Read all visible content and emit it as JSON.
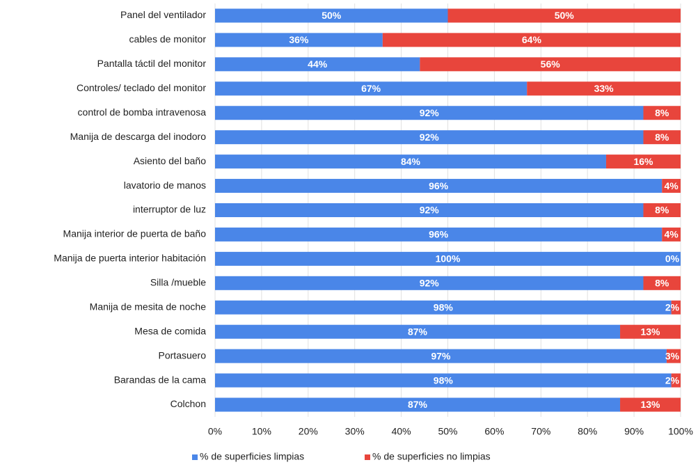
{
  "chart_data": {
    "type": "stacked_barh",
    "categories": [
      "Panel del ventilador",
      "cables de monitor",
      "Pantalla táctil del monitor",
      "Controles/ teclado del monitor",
      "control de bomba intravenosa",
      "Manija de descarga del inodoro",
      "Asiento del baño",
      "lavatorio de manos",
      "interruptor de luz",
      "Manija interior de puerta de baño",
      "Manija de puerta interior habitación",
      "Silla /mueble",
      "Manija de mesita de noche",
      "Mesa de comida",
      "Portasuero",
      "Barandas de la cama",
      "Colchon"
    ],
    "series": [
      {
        "name": "% de superficies limpias",
        "color": "#4a86e8",
        "values": [
          50,
          36,
          44,
          67,
          92,
          92,
          84,
          96,
          92,
          96,
          100,
          92,
          98,
          87,
          97,
          98,
          87
        ],
        "value_labels": [
          "50%",
          "36%",
          "44%",
          "67%",
          "92%",
          "92%",
          "84%",
          "96%",
          "92%",
          "96%",
          "100%",
          "92%",
          "98%",
          "87%",
          "97%",
          "98%",
          "87%"
        ]
      },
      {
        "name": "% de superficies no limpias",
        "color": "#e8453c",
        "values": [
          50,
          64,
          56,
          33,
          8,
          8,
          16,
          4,
          8,
          4,
          0,
          8,
          2,
          13,
          3,
          2,
          13
        ],
        "value_labels": [
          "50%",
          "64%",
          "56%",
          "33%",
          "8%",
          "8%",
          "16%",
          "4%",
          "8%",
          "4%",
          "0%",
          "8%",
          "2%",
          "13%",
          "3%",
          "2%",
          "13%"
        ]
      }
    ],
    "xlim": [
      0,
      100
    ],
    "xticks": [
      {
        "value": 0,
        "label": "0%"
      },
      {
        "value": 10,
        "label": "10%"
      },
      {
        "value": 20,
        "label": "20%"
      },
      {
        "value": 30,
        "label": "30%"
      },
      {
        "value": 40,
        "label": "40%"
      },
      {
        "value": 50,
        "label": "50%"
      },
      {
        "value": 60,
        "label": "60%"
      },
      {
        "value": 70,
        "label": "70%"
      },
      {
        "value": 80,
        "label": "80%"
      },
      {
        "value": 90,
        "label": "90%"
      },
      {
        "value": 100,
        "label": "100%"
      }
    ],
    "grid": true,
    "legend": "bottom"
  }
}
